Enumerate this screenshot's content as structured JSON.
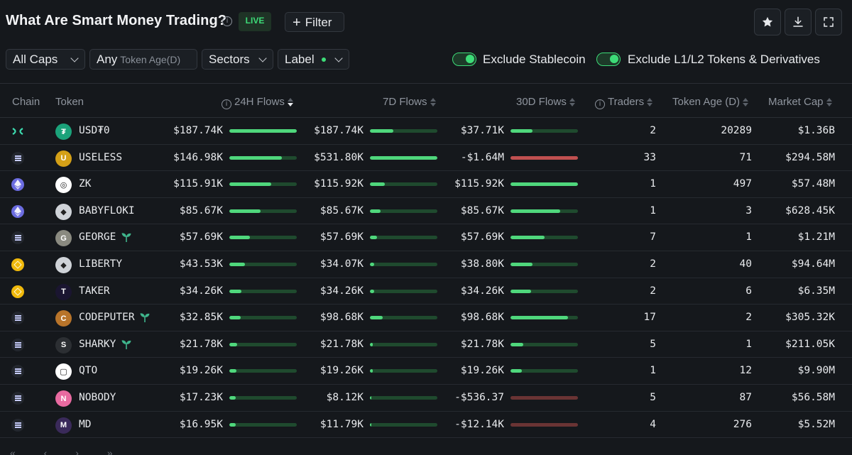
{
  "header": {
    "title": "What Are Smart Money Trading?",
    "live_label": "LIVE",
    "filter_label": "Filter"
  },
  "filters": {
    "caps": "All Caps",
    "any": "Any",
    "token_age": "Token Age(D)",
    "sectors": "Sectors",
    "label": "Label",
    "exclude_stablecoin": "Exclude Stablecoin",
    "exclude_l1l2": "Exclude L1/L2 Tokens & Derivatives"
  },
  "columns": {
    "chain": "Chain",
    "token": "Token",
    "flows_24h": "24H Flows",
    "flows_7d": "7D Flows",
    "flows_30d": "30D Flows",
    "traders": "Traders",
    "token_age": "Token Age (D)",
    "market_cap": "Market Cap"
  },
  "colors": {
    "accent_green": "#4fd77c",
    "negative_red": "#c05050",
    "background": "#15181c"
  },
  "rows": [
    {
      "chain": "sui",
      "token": "USD₮0",
      "logo_color": "#1ba27a",
      "logo_glyph": "₮",
      "sprout": false,
      "flows_24h": "$187.74K",
      "bar_24h": 1.0,
      "flows_7d": "$187.74K",
      "bar_7d": 0.35,
      "flows_30d": "$37.71K",
      "bar_30d": 0.33,
      "neg30": false,
      "traders": "2",
      "age": "20289",
      "mcap": "$1.36B"
    },
    {
      "chain": "sol",
      "token": "USELESS",
      "logo_color": "#d4a017",
      "logo_glyph": "U",
      "sprout": false,
      "flows_24h": "$146.98K",
      "bar_24h": 0.78,
      "flows_7d": "$531.80K",
      "bar_7d": 1.0,
      "flows_30d": "-$1.64M",
      "bar_30d": 1.0,
      "neg30": true,
      "traders": "33",
      "age": "71",
      "mcap": "$294.58M"
    },
    {
      "chain": "eth",
      "token": "ZK",
      "logo_color": "#ffffff",
      "logo_glyph": "◎",
      "sprout": false,
      "flows_24h": "$115.91K",
      "bar_24h": 0.62,
      "flows_7d": "$115.92K",
      "bar_7d": 0.22,
      "flows_30d": "$115.92K",
      "bar_30d": 1.0,
      "neg30": false,
      "traders": "1",
      "age": "497",
      "mcap": "$57.48M"
    },
    {
      "chain": "eth",
      "token": "BABYFLOKI",
      "logo_color": "#cfd3d8",
      "logo_glyph": "◆",
      "sprout": false,
      "flows_24h": "$85.67K",
      "bar_24h": 0.46,
      "flows_7d": "$85.67K",
      "bar_7d": 0.16,
      "flows_30d": "$85.67K",
      "bar_30d": 0.74,
      "neg30": false,
      "traders": "1",
      "age": "3",
      "mcap": "$628.45K"
    },
    {
      "chain": "sol",
      "token": "GEORGE",
      "logo_color": "#8a8a80",
      "logo_glyph": "G",
      "sprout": true,
      "flows_24h": "$57.69K",
      "bar_24h": 0.31,
      "flows_7d": "$57.69K",
      "bar_7d": 0.11,
      "flows_30d": "$57.69K",
      "bar_30d": 0.5,
      "neg30": false,
      "traders": "7",
      "age": "1",
      "mcap": "$1.21M"
    },
    {
      "chain": "bnb",
      "token": "LIBERTY",
      "logo_color": "#cfd3d8",
      "logo_glyph": "◆",
      "sprout": false,
      "flows_24h": "$43.53K",
      "bar_24h": 0.23,
      "flows_7d": "$34.07K",
      "bar_7d": 0.06,
      "flows_30d": "$38.80K",
      "bar_30d": 0.33,
      "neg30": false,
      "traders": "2",
      "age": "40",
      "mcap": "$94.64M"
    },
    {
      "chain": "bnb",
      "token": "TAKER",
      "logo_color": "#1a1530",
      "logo_glyph": "T",
      "sprout": false,
      "flows_24h": "$34.26K",
      "bar_24h": 0.18,
      "flows_7d": "$34.26K",
      "bar_7d": 0.06,
      "flows_30d": "$34.26K",
      "bar_30d": 0.3,
      "neg30": false,
      "traders": "2",
      "age": "6",
      "mcap": "$6.35M"
    },
    {
      "chain": "sol",
      "token": "CODEPUTER",
      "logo_color": "#b8742a",
      "logo_glyph": "C",
      "sprout": true,
      "flows_24h": "$32.85K",
      "bar_24h": 0.17,
      "flows_7d": "$98.68K",
      "bar_7d": 0.19,
      "flows_30d": "$98.68K",
      "bar_30d": 0.85,
      "neg30": false,
      "traders": "17",
      "age": "2",
      "mcap": "$305.32K"
    },
    {
      "chain": "sol",
      "token": "SHARKY",
      "logo_color": "#2c2f33",
      "logo_glyph": "S",
      "sprout": true,
      "flows_24h": "$21.78K",
      "bar_24h": 0.12,
      "flows_7d": "$21.78K",
      "bar_7d": 0.04,
      "flows_30d": "$21.78K",
      "bar_30d": 0.19,
      "neg30": false,
      "traders": "5",
      "age": "1",
      "mcap": "$211.05K"
    },
    {
      "chain": "sol",
      "token": "QTO",
      "logo_color": "#ffffff",
      "logo_glyph": "▢",
      "sprout": false,
      "flows_24h": "$19.26K",
      "bar_24h": 0.1,
      "flows_7d": "$19.26K",
      "bar_7d": 0.04,
      "flows_30d": "$19.26K",
      "bar_30d": 0.17,
      "neg30": false,
      "traders": "1",
      "age": "12",
      "mcap": "$9.90M"
    },
    {
      "chain": "sol",
      "token": "NOBODY",
      "logo_color": "#e86aa0",
      "logo_glyph": "N",
      "sprout": false,
      "flows_24h": "$17.23K",
      "bar_24h": 0.09,
      "flows_7d": "$8.12K",
      "bar_7d": 0.02,
      "flows_30d": "-$536.37",
      "bar_30d": 1.0,
      "neg30": "dim",
      "traders": "5",
      "age": "87",
      "mcap": "$56.58M"
    },
    {
      "chain": "sol",
      "token": "MD",
      "logo_color": "#3a2a5a",
      "logo_glyph": "M",
      "sprout": false,
      "flows_24h": "$16.95K",
      "bar_24h": 0.09,
      "flows_7d": "$11.79K",
      "bar_7d": 0.02,
      "flows_30d": "-$12.14K",
      "bar_30d": 1.0,
      "neg30": "dim",
      "traders": "4",
      "age": "276",
      "mcap": "$5.52M"
    }
  ]
}
